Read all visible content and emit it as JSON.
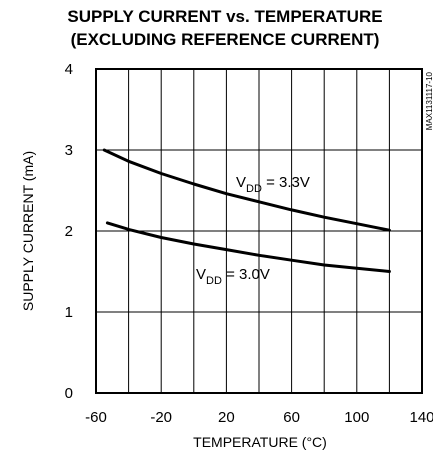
{
  "chart_data": {
    "type": "line",
    "title_line1": "SUPPLY CURRENT vs. TEMPERATURE",
    "title_line2": "(EXCLUDING REFERENCE CURRENT)",
    "xlabel": "TEMPERATURE (°C)",
    "ylabel": "SUPPLY CURRENT  (mA)",
    "xlim": [
      -60,
      140
    ],
    "ylim": [
      0,
      4
    ],
    "x_tick_labels": [
      "-60",
      "-20",
      "20",
      "60",
      "100",
      "140"
    ],
    "y_tick_labels": [
      "0",
      "1",
      "2",
      "3",
      "4"
    ],
    "grid": true,
    "code": "MAX1131117-10",
    "series": [
      {
        "label_main": "V",
        "label_sub": "DD",
        "label_rest": " = 3.3V",
        "x": [
          -55,
          -40,
          -20,
          0,
          20,
          40,
          60,
          80,
          100,
          120
        ],
        "y": [
          3.0,
          2.86,
          2.71,
          2.58,
          2.46,
          2.36,
          2.26,
          2.17,
          2.09,
          2.01
        ]
      },
      {
        "label_main": "V",
        "label_sub": "DD",
        "label_rest": " = 3.0V",
        "x": [
          -53,
          -40,
          -20,
          0,
          20,
          40,
          60,
          80,
          100,
          120
        ],
        "y": [
          2.1,
          2.02,
          1.92,
          1.84,
          1.77,
          1.7,
          1.64,
          1.58,
          1.54,
          1.5
        ]
      }
    ]
  }
}
